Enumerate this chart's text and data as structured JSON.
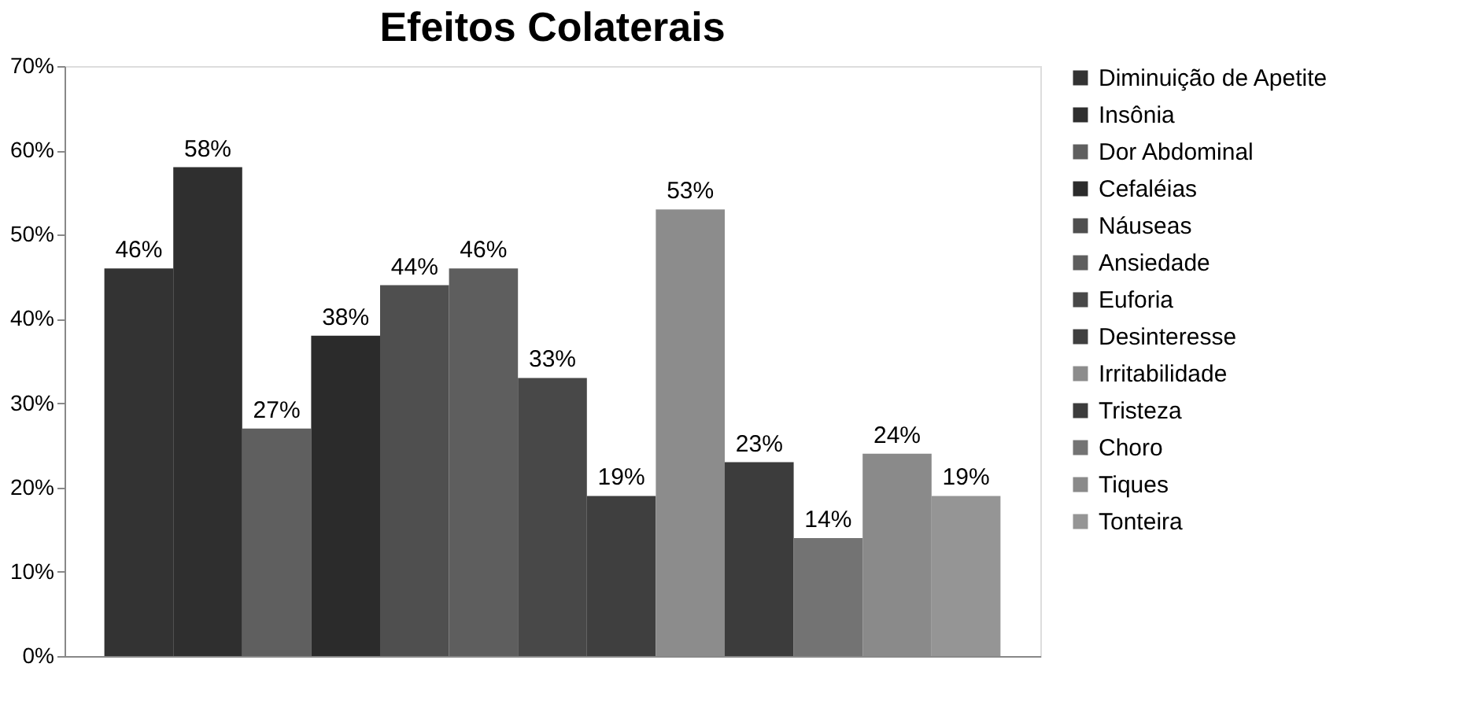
{
  "chart_data": {
    "type": "bar",
    "title": "Efeitos Colaterais",
    "categories": [
      null
    ],
    "series": [
      {
        "name": "Diminuição de Apetite",
        "color": "#333333",
        "values": [
          46
        ],
        "value_labels": [
          "46%"
        ]
      },
      {
        "name": "Insônia",
        "color": "#2f2f2f",
        "values": [
          58
        ],
        "value_labels": [
          "58%"
        ]
      },
      {
        "name": "Dor Abdominal",
        "color": "#5f5f5f",
        "values": [
          27
        ],
        "value_labels": [
          "27%"
        ]
      },
      {
        "name": "Cefaléias",
        "color": "#2b2b2b",
        "values": [
          38
        ],
        "value_labels": [
          "38%"
        ]
      },
      {
        "name": "Náuseas",
        "color": "#4f4f4f",
        "values": [
          44
        ],
        "value_labels": [
          "44%"
        ]
      },
      {
        "name": "Ansiedade",
        "color": "#5e5e5e",
        "values": [
          46
        ],
        "value_labels": [
          "46%"
        ]
      },
      {
        "name": "Euforia",
        "color": "#484848",
        "values": [
          33
        ],
        "value_labels": [
          "33%"
        ]
      },
      {
        "name": "Desinteresse",
        "color": "#3f3f3f",
        "values": [
          19
        ],
        "value_labels": [
          "19%"
        ]
      },
      {
        "name": "Irritabilidade",
        "color": "#8c8c8c",
        "values": [
          53
        ],
        "value_labels": [
          "53%"
        ]
      },
      {
        "name": "Tristeza",
        "color": "#3c3c3c",
        "values": [
          23
        ],
        "value_labels": [
          "23%"
        ]
      },
      {
        "name": "Choro",
        "color": "#737373",
        "values": [
          14
        ],
        "value_labels": [
          "14%"
        ]
      },
      {
        "name": "Tiques",
        "color": "#8a8a8a",
        "values": [
          24
        ],
        "value_labels": [
          "24%"
        ]
      },
      {
        "name": "Tonteira",
        "color": "#959595",
        "values": [
          19
        ],
        "value_labels": [
          "19%"
        ]
      }
    ],
    "ylim": [
      0,
      70
    ],
    "yticks": [
      {
        "value": 0,
        "label": "0%"
      },
      {
        "value": 10,
        "label": "10%"
      },
      {
        "value": 20,
        "label": "20%"
      },
      {
        "value": 30,
        "label": "30%"
      },
      {
        "value": 40,
        "label": "40%"
      },
      {
        "value": 50,
        "label": "50%"
      },
      {
        "value": 60,
        "label": "60%"
      },
      {
        "value": 70,
        "label": "70%"
      }
    ],
    "tick_labels": "y",
    "grid": false,
    "legend": "right"
  }
}
